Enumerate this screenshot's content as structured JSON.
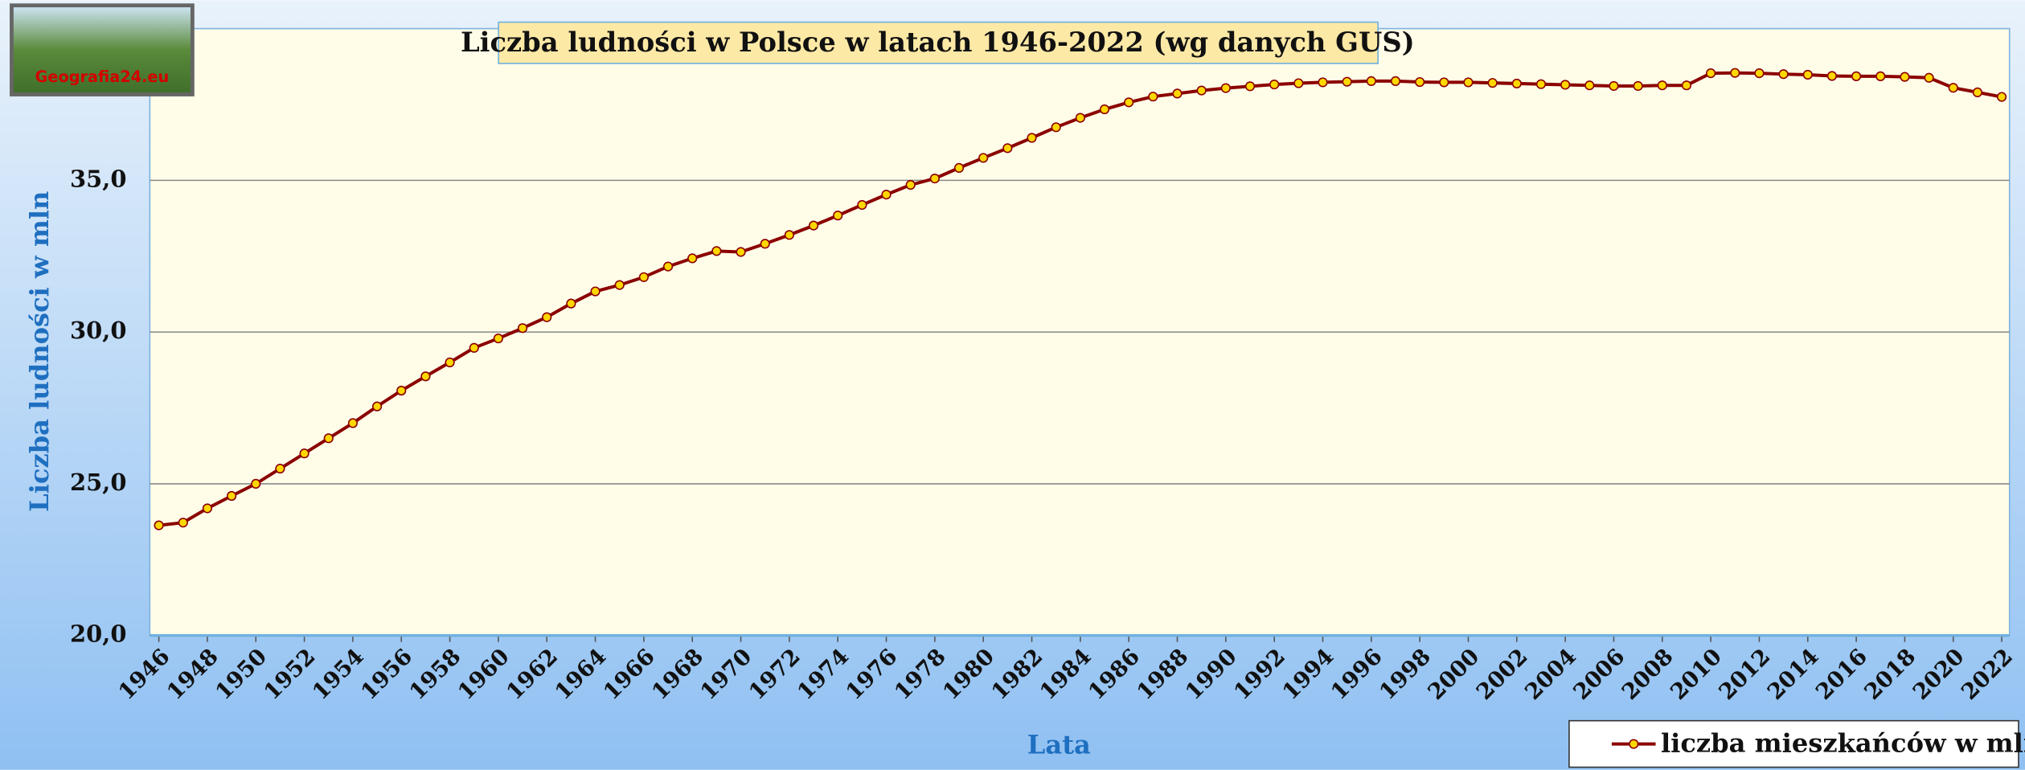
{
  "chart_data": {
    "type": "line",
    "title": "Liczba ludności w Polsce w latach 1946-2022 (wg danych GUS)",
    "logo": "Geografia24.eu",
    "y_label": "Liczba ludności w mln",
    "x_label": "Lata",
    "x": [
      1946,
      1947,
      1948,
      1949,
      1950,
      1951,
      1952,
      1953,
      1954,
      1955,
      1956,
      1957,
      1958,
      1959,
      1960,
      1961,
      1962,
      1963,
      1964,
      1965,
      1966,
      1967,
      1968,
      1969,
      1970,
      1971,
      1972,
      1973,
      1974,
      1975,
      1976,
      1977,
      1978,
      1979,
      1980,
      1981,
      1982,
      1983,
      1984,
      1985,
      1986,
      1987,
      1988,
      1989,
      1990,
      1991,
      1992,
      1993,
      1994,
      1995,
      1996,
      1997,
      1998,
      1999,
      2000,
      2001,
      2002,
      2003,
      2004,
      2005,
      2006,
      2007,
      2008,
      2009,
      2010,
      2011,
      2012,
      2013,
      2014,
      2015,
      2016,
      2017,
      2018,
      2019,
      2020,
      2021,
      2022
    ],
    "series": [
      {
        "name": "liczba mieszkańców w mln",
        "color": "#8b0000",
        "marker_color": "#ffd700",
        "values": [
          23.63,
          23.72,
          24.19,
          24.6,
          25.0,
          25.5,
          26.0,
          26.5,
          27.0,
          27.55,
          28.07,
          28.54,
          29.0,
          29.48,
          29.79,
          30.13,
          30.49,
          30.94,
          31.34,
          31.55,
          31.81,
          32.16,
          32.43,
          32.67,
          32.64,
          32.91,
          33.2,
          33.51,
          33.84,
          34.19,
          34.53,
          34.85,
          35.06,
          35.41,
          35.74,
          36.06,
          36.4,
          36.75,
          37.06,
          37.34,
          37.57,
          37.76,
          37.86,
          37.96,
          38.04,
          38.1,
          38.16,
          38.2,
          38.23,
          38.25,
          38.27,
          38.27,
          38.24,
          38.23,
          38.23,
          38.21,
          38.19,
          38.17,
          38.15,
          38.13,
          38.11,
          38.11,
          38.13,
          38.13,
          38.53,
          38.54,
          38.53,
          38.5,
          38.48,
          38.44,
          38.43,
          38.43,
          38.41,
          38.38,
          38.05,
          37.9,
          37.75
        ]
      }
    ],
    "xlim": [
      1946,
      2022
    ],
    "xticks": [
      1946,
      1948,
      1950,
      1952,
      1954,
      1956,
      1958,
      1960,
      1962,
      1964,
      1966,
      1968,
      1970,
      1972,
      1974,
      1976,
      1978,
      1980,
      1982,
      1984,
      1986,
      1988,
      1990,
      1992,
      1994,
      1996,
      1998,
      2000,
      2002,
      2004,
      2006,
      2008,
      2010,
      2012,
      2014,
      2016,
      2018,
      2020,
      2022
    ],
    "ylim": [
      20,
      40
    ],
    "yticks": [
      {
        "value": 20,
        "label": "20,0"
      },
      {
        "value": 25,
        "label": "25,0"
      },
      {
        "value": 30,
        "label": "30,0"
      },
      {
        "value": 35,
        "label": "35,0"
      }
    ],
    "grid": true,
    "legend": "bottom-right"
  }
}
